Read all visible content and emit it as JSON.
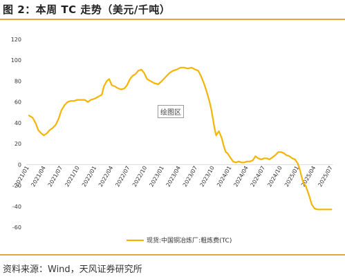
{
  "header": {
    "title": "图 2：本周 TC 走势（美元/千吨）"
  },
  "footer": {
    "source": "资料来源：Wind，天风证券研究所"
  },
  "plot_area_label": "绘图区",
  "colors": {
    "line": "#f5b400",
    "accent_rule": "#e8a33d"
  },
  "chart_data": {
    "type": "line",
    "title": "",
    "xlabel": "",
    "ylabel": "",
    "ylim": [
      -60,
      120
    ],
    "yticks": [
      -60,
      -40,
      -20,
      0,
      20,
      40,
      60,
      80,
      100,
      120
    ],
    "x_range": [
      "2021-01",
      "2025-07"
    ],
    "xticks": [
      "2021/01",
      "2021/04",
      "2021/07",
      "2021/10",
      "2022/01",
      "2022/04",
      "2022/07",
      "2022/10",
      "2023/01",
      "2023/04",
      "2023/07",
      "2023/10",
      "2024/01",
      "2024/04",
      "2024/07",
      "2024/10",
      "2025/01",
      "2025/04",
      "2025/07"
    ],
    "grid": false,
    "legend_position": "bottom",
    "series": [
      {
        "name": "现货:中国铜冶炼厂:粗炼费(TC)",
        "color": "#f5b400",
        "points": [
          [
            "2021-01-01",
            47
          ],
          [
            "2021-01-20",
            45
          ],
          [
            "2021-02-05",
            40
          ],
          [
            "2021-02-20",
            33
          ],
          [
            "2021-03-08",
            30
          ],
          [
            "2021-03-22",
            28
          ],
          [
            "2021-04-08",
            30
          ],
          [
            "2021-04-22",
            33
          ],
          [
            "2021-05-08",
            35
          ],
          [
            "2021-05-25",
            38
          ],
          [
            "2021-06-10",
            44
          ],
          [
            "2021-06-25",
            52
          ],
          [
            "2021-07-12",
            57
          ],
          [
            "2021-07-28",
            60
          ],
          [
            "2021-08-15",
            61
          ],
          [
            "2021-09-01",
            61
          ],
          [
            "2021-09-20",
            62
          ],
          [
            "2021-10-10",
            62
          ],
          [
            "2021-10-30",
            62
          ],
          [
            "2021-11-15",
            60
          ],
          [
            "2021-12-01",
            62
          ],
          [
            "2021-12-20",
            63
          ],
          [
            "2022-01-10",
            65
          ],
          [
            "2022-01-30",
            67
          ],
          [
            "2022-02-10",
            75
          ],
          [
            "2022-02-25",
            80
          ],
          [
            "2022-03-10",
            82
          ],
          [
            "2022-03-25",
            76
          ],
          [
            "2022-04-10",
            75
          ],
          [
            "2022-04-28",
            73
          ],
          [
            "2022-05-15",
            72
          ],
          [
            "2022-06-01",
            73
          ],
          [
            "2022-06-15",
            76
          ],
          [
            "2022-07-01",
            82
          ],
          [
            "2022-07-15",
            85
          ],
          [
            "2022-08-01",
            87
          ],
          [
            "2022-08-15",
            90
          ],
          [
            "2022-09-01",
            91
          ],
          [
            "2022-09-15",
            88
          ],
          [
            "2022-10-01",
            82
          ],
          [
            "2022-10-20",
            80
          ],
          [
            "2022-11-10",
            78
          ],
          [
            "2022-12-01",
            77
          ],
          [
            "2022-12-20",
            80
          ],
          [
            "2023-01-10",
            84
          ],
          [
            "2023-02-01",
            88
          ],
          [
            "2023-02-20",
            90
          ],
          [
            "2023-03-10",
            91
          ],
          [
            "2023-04-01",
            93
          ],
          [
            "2023-04-20",
            93
          ],
          [
            "2023-05-10",
            92
          ],
          [
            "2023-05-30",
            93
          ],
          [
            "2023-06-20",
            91
          ],
          [
            "2023-07-05",
            90
          ],
          [
            "2023-07-20",
            85
          ],
          [
            "2023-08-05",
            78
          ],
          [
            "2023-08-20",
            70
          ],
          [
            "2023-09-05",
            60
          ],
          [
            "2023-09-15",
            52
          ],
          [
            "2023-10-01",
            35
          ],
          [
            "2023-10-10",
            28
          ],
          [
            "2023-10-25",
            32
          ],
          [
            "2023-11-10",
            25
          ],
          [
            "2023-11-20",
            18
          ],
          [
            "2023-12-01",
            12
          ],
          [
            "2023-12-10",
            11
          ],
          [
            "2023-12-25",
            7
          ],
          [
            "2024-01-10",
            3
          ],
          [
            "2024-01-25",
            2
          ],
          [
            "2024-02-10",
            3
          ],
          [
            "2024-02-25",
            2
          ],
          [
            "2024-03-10",
            2
          ],
          [
            "2024-03-25",
            3
          ],
          [
            "2024-04-10",
            3
          ],
          [
            "2024-04-25",
            4
          ],
          [
            "2024-05-10",
            8
          ],
          [
            "2024-05-25",
            6
          ],
          [
            "2024-06-10",
            5
          ],
          [
            "2024-06-25",
            6
          ],
          [
            "2024-07-10",
            6
          ],
          [
            "2024-07-25",
            5
          ],
          [
            "2024-08-10",
            7
          ],
          [
            "2024-08-25",
            9
          ],
          [
            "2024-09-10",
            12
          ],
          [
            "2024-09-25",
            12
          ],
          [
            "2024-10-10",
            11
          ],
          [
            "2024-10-25",
            9
          ],
          [
            "2024-11-10",
            8
          ],
          [
            "2024-11-25",
            6
          ],
          [
            "2024-12-10",
            5
          ],
          [
            "2024-12-25",
            1
          ],
          [
            "2025-01-05",
            -5
          ],
          [
            "2025-01-15",
            -12
          ],
          [
            "2025-01-25",
            -18
          ],
          [
            "2025-02-05",
            -20
          ],
          [
            "2025-02-15",
            -25
          ],
          [
            "2025-02-25",
            -30
          ],
          [
            "2025-03-10",
            -38
          ],
          [
            "2025-03-25",
            -42
          ],
          [
            "2025-04-10",
            -43
          ],
          [
            "2025-04-25",
            -43
          ],
          [
            "2025-05-10",
            -43
          ],
          [
            "2025-05-25",
            -43
          ],
          [
            "2025-06-10",
            -43
          ],
          [
            "2025-06-25",
            -43
          ]
        ]
      }
    ]
  }
}
